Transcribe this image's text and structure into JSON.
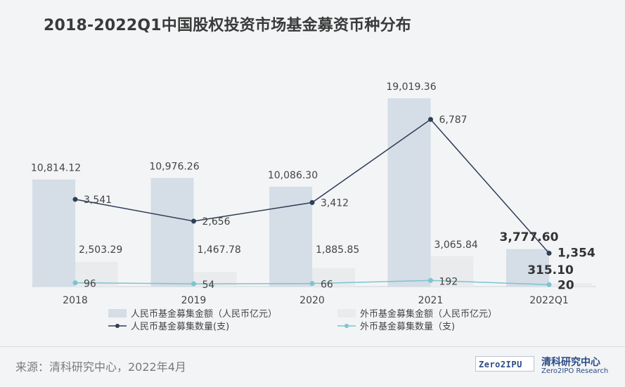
{
  "title": "2018-2022Q1中国股权投资市场基金募资币种分布",
  "source": "来源：清科研究中心，2022年4月",
  "logo": {
    "box_text": "Zero2IPU",
    "name_cn": "清科研究中心",
    "name_en": "Zero2IPO Research"
  },
  "colors": {
    "rmb_bar": "#d5dde6",
    "fx_bar": "#e9ebed",
    "rmb_line": "#2e3e56",
    "fx_line": "#7cc4d0",
    "text": "#444444"
  },
  "chart_data": {
    "type": "bar",
    "categories": [
      "2018",
      "2019",
      "2020",
      "2021",
      "2022Q1"
    ],
    "series": [
      {
        "name": "人民币基金募集金额（人民币亿元）",
        "kind": "bar",
        "values": [
          "10,814.12",
          "10,976.26",
          "10,086.30",
          "19,019.36",
          "3,777.60"
        ]
      },
      {
        "name": "外币基金募集金额（人民币亿元）",
        "kind": "bar",
        "values": [
          "2,503.29",
          "1,467.78",
          "1,885.85",
          "3,065.84",
          "315.10"
        ]
      },
      {
        "name": "人民币基金募集数量(支)",
        "kind": "line",
        "values": [
          "3,541",
          "2,656",
          "3,412",
          "6,787",
          "1,354"
        ]
      },
      {
        "name": "外币基金募集数量（支)",
        "kind": "line",
        "values": [
          "96",
          "54",
          "66",
          "192",
          "20"
        ]
      }
    ],
    "legend": "bottom",
    "grid": false
  }
}
